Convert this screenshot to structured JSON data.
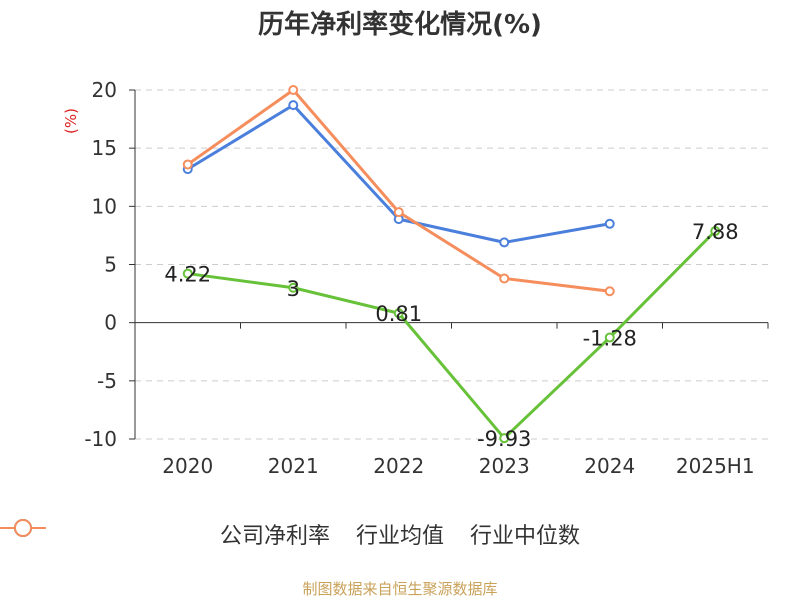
{
  "chart_data": {
    "type": "line",
    "title": "历年净利率变化情况(%)",
    "ylabel": "(%)",
    "categories": [
      "2020",
      "2021",
      "2022",
      "2023",
      "2024",
      "2025H1"
    ],
    "ylim": [
      -10,
      20
    ],
    "yticks": [
      -10,
      -5,
      0,
      5,
      10,
      15,
      20
    ],
    "grid": true,
    "legend_position": "bottom",
    "series": [
      {
        "name": "公司净利率",
        "color": "#67c23a",
        "values": [
          4.22,
          3,
          0.81,
          -9.93,
          -1.28,
          7.88
        ],
        "labels": [
          "4.22",
          "3",
          "0.81",
          "-9.93",
          "-1.28",
          "7.88"
        ]
      },
      {
        "name": "行业均值",
        "color": "#4b7fdc",
        "values": [
          13.2,
          18.7,
          8.9,
          6.9,
          8.5,
          null
        ]
      },
      {
        "name": "行业中位数",
        "color": "#f58d5c",
        "values": [
          13.6,
          20.0,
          9.5,
          3.8,
          2.7,
          null
        ]
      }
    ]
  },
  "footer": "制图数据来自恒生聚源数据库"
}
